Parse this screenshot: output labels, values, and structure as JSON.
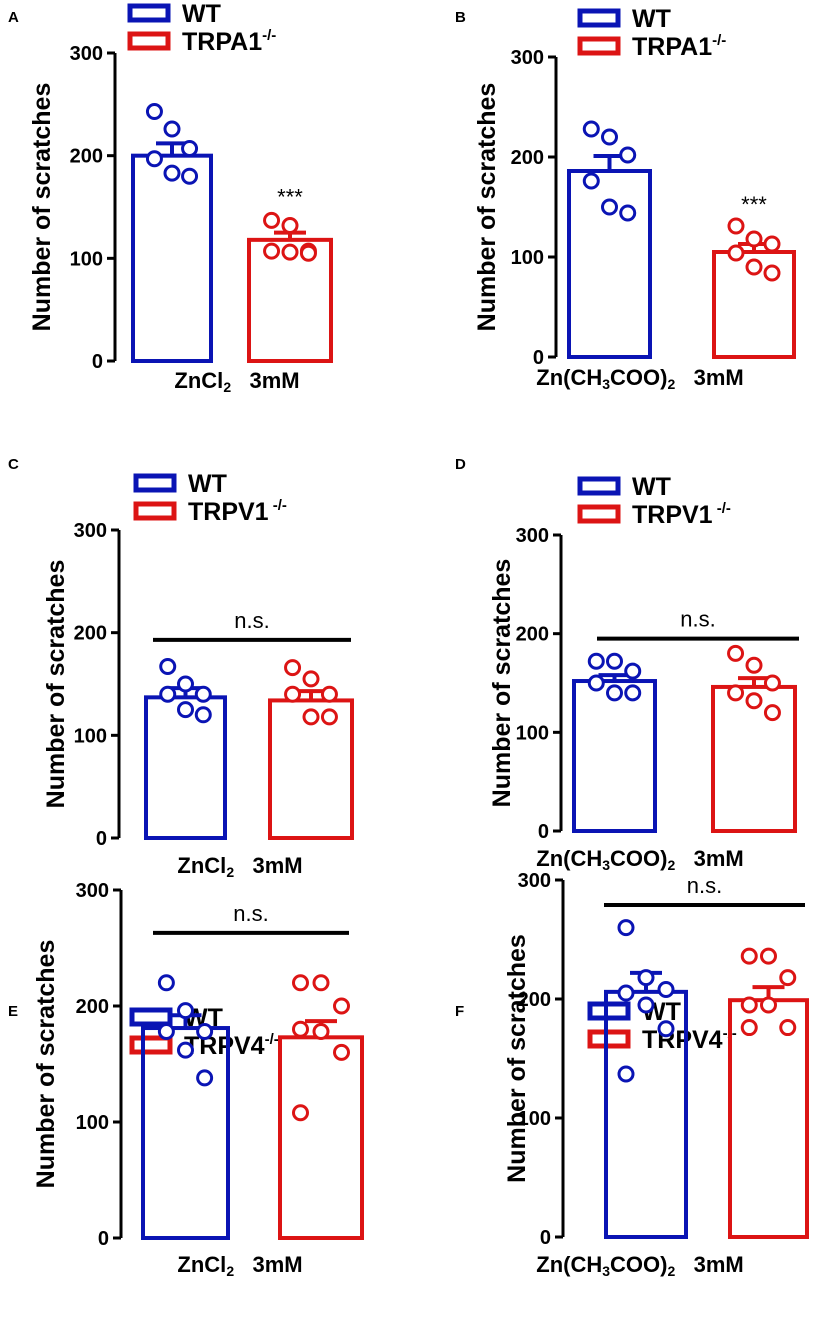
{
  "colors": {
    "wt": "#0a14b4",
    "ko": "#dc1414",
    "axis": "#000000"
  },
  "chart_data": [
    {
      "panel": "A",
      "type": "bar",
      "ylabel": "Number of scratches",
      "ylim": [
        0,
        300
      ],
      "yticks": [
        "0",
        "100",
        "200",
        "300"
      ],
      "xlabel": {
        "compound": "ZnCl",
        "subscript": "2",
        "suffix": "",
        "conc": "3mM"
      },
      "legend": [
        {
          "label": "WT",
          "sup": ""
        },
        {
          "label": "TRPA1",
          "sup": "-/-"
        }
      ],
      "series": [
        {
          "name": "WT",
          "mean": 200,
          "sem": 12,
          "points": [
            243,
            226,
            207,
            197,
            183,
            180
          ]
        },
        {
          "name": "TRPA1-/-",
          "mean": 118,
          "sem": 7,
          "points": [
            137,
            132,
            107,
            107,
            106,
            105
          ]
        }
      ],
      "annotation": {
        "text": "***",
        "kind": "stars",
        "series": 1,
        "y": 162
      }
    },
    {
      "panel": "B",
      "type": "bar",
      "ylabel": "Number of scratches",
      "ylim": [
        0,
        300
      ],
      "yticks": [
        "0",
        "100",
        "200",
        "300"
      ],
      "xlabel": {
        "compound": "Zn(CH",
        "subscript": "3",
        "suffix": "COO)",
        "sub2": "2",
        "conc": "3mM"
      },
      "legend": [
        {
          "label": "WT",
          "sup": ""
        },
        {
          "label": "TRPA1",
          "sup": "-/-"
        }
      ],
      "series": [
        {
          "name": "WT",
          "mean": 186,
          "sem": 15,
          "points": [
            228,
            220,
            202,
            176,
            150,
            144
          ]
        },
        {
          "name": "TRPA1-/-",
          "mean": 105,
          "sem": 8,
          "points": [
            131,
            118,
            113,
            104,
            90,
            84
          ]
        }
      ],
      "annotation": {
        "text": "***",
        "kind": "stars",
        "series": 1,
        "y": 155
      }
    },
    {
      "panel": "C",
      "type": "bar",
      "ylabel": "Number of scratches",
      "ylim": [
        0,
        300
      ],
      "yticks": [
        "0",
        "100",
        "200",
        "300"
      ],
      "xlabel": {
        "compound": "ZnCl",
        "subscript": "2",
        "suffix": "",
        "conc": "3mM"
      },
      "legend": [
        {
          "label": "WT",
          "sup": ""
        },
        {
          "label": "TRPV1",
          "sup": " -/-"
        }
      ],
      "series": [
        {
          "name": "WT",
          "mean": 137,
          "sem": 9,
          "points": [
            167,
            150,
            140,
            140,
            125,
            120
          ]
        },
        {
          "name": "TRPV1-/-",
          "mean": 134,
          "sem": 9,
          "points": [
            166,
            155,
            140,
            140,
            118,
            118
          ]
        }
      ],
      "annotation": {
        "text": "n.s.",
        "kind": "line",
        "y": 193
      }
    },
    {
      "panel": "D",
      "type": "bar",
      "ylabel": "Number of scratches",
      "ylim": [
        0,
        300
      ],
      "yticks": [
        "0",
        "100",
        "200",
        "300"
      ],
      "xlabel": {
        "compound": "Zn(CH",
        "subscript": "3",
        "suffix": "COO)",
        "sub2": "2",
        "conc": "3mM"
      },
      "legend": [
        {
          "label": "WT",
          "sup": ""
        },
        {
          "label": "TRPV1",
          "sup": " -/-"
        }
      ],
      "series": [
        {
          "name": "WT",
          "mean": 152,
          "sem": 6,
          "points": [
            172,
            172,
            162,
            150,
            140,
            140
          ]
        },
        {
          "name": "TRPV1-/-",
          "mean": 146,
          "sem": 9,
          "points": [
            180,
            168,
            150,
            140,
            132,
            120
          ]
        }
      ],
      "annotation": {
        "text": "n.s.",
        "kind": "line",
        "y": 195
      }
    },
    {
      "panel": "E",
      "type": "bar",
      "ylabel": "Number of scratches",
      "ylim": [
        0,
        300
      ],
      "yticks": [
        "0",
        "100",
        "200",
        "300"
      ],
      "xlabel": {
        "compound": "ZnCl",
        "subscript": "2",
        "suffix": "",
        "conc": "3mM"
      },
      "legend": [
        {
          "label": "WT",
          "sup": ""
        },
        {
          "label": "TRPV4",
          "sup": "-/-"
        }
      ],
      "series": [
        {
          "name": "WT",
          "mean": 181,
          "sem": 11,
          "points": [
            220,
            196,
            178,
            178,
            162,
            138
          ]
        },
        {
          "name": "TRPV4-/-",
          "mean": 173,
          "sem": 14,
          "points": [
            220,
            220,
            200,
            180,
            178,
            160,
            108
          ]
        }
      ],
      "annotation": {
        "text": "n.s.",
        "kind": "line",
        "y": 263
      }
    },
    {
      "panel": "F",
      "type": "bar",
      "ylabel": "Number of scratches",
      "ylim": [
        0,
        300
      ],
      "yticks": [
        "0",
        "100",
        "200",
        "300"
      ],
      "xlabel": {
        "compound": "Zn(CH",
        "subscript": "3",
        "suffix": "COO)",
        "sub2": "2",
        "conc": "3mM"
      },
      "legend": [
        {
          "label": "WT",
          "sup": ""
        },
        {
          "label": "TRPV4",
          "sup": "-/-"
        }
      ],
      "series": [
        {
          "name": "WT",
          "mean": 206,
          "sem": 16,
          "points": [
            260,
            218,
            208,
            205,
            195,
            175,
            137
          ]
        },
        {
          "name": "TRPV4-/-",
          "mean": 199,
          "sem": 11,
          "points": [
            236,
            236,
            218,
            195,
            195,
            176,
            176
          ]
        }
      ],
      "annotation": {
        "text": "n.s.",
        "kind": "line",
        "y": 279
      }
    }
  ]
}
